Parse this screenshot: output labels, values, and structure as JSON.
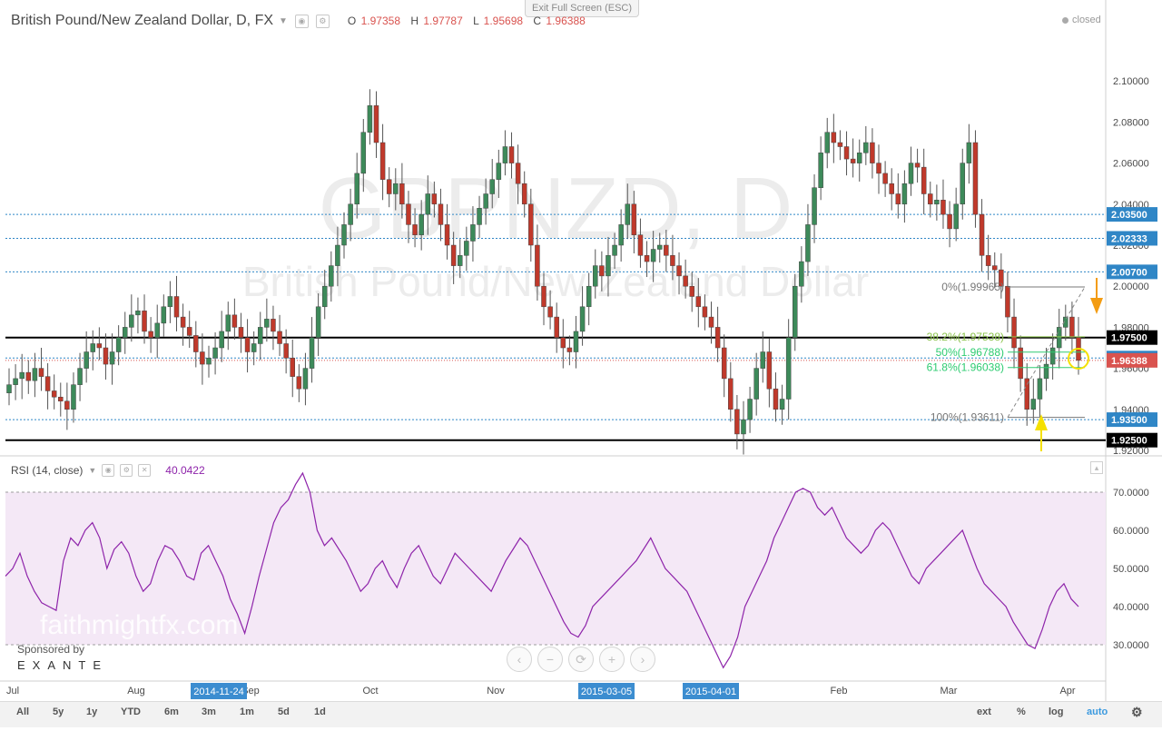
{
  "window": {
    "exit_fullscreen_label": "Exit Full Screen (ESC)"
  },
  "legend": {
    "title": "British Pound/New Zealand Dollar, D, FX",
    "open_label": "O",
    "open": "1.97358",
    "high_label": "H",
    "high": "1.97787",
    "low_label": "L",
    "low": "1.95698",
    "close_label": "C",
    "close": "1.96388",
    "status": "closed"
  },
  "watermark": {
    "symbol": "GBPNZD, D",
    "name": "British Pound/New Zealand Dollar"
  },
  "rsi_legend": {
    "name": "RSI (14, close)",
    "value": "40.0422"
  },
  "branding": {
    "site": "faithmightfx.com",
    "sponsor": "Sponsored by",
    "sponsor_name": "EXANTE"
  },
  "zoom_controls": [
    "‹",
    "−",
    "⟳",
    "+",
    "›"
  ],
  "timeframes": [
    "All",
    "5y",
    "1y",
    "YTD",
    "6m",
    "3m",
    "1m",
    "5d",
    "1d"
  ],
  "bottom_right": [
    "ext",
    "%",
    "log",
    "auto"
  ],
  "colors": {
    "up": "#3d8a5a",
    "down": "#c0392b",
    "rsi": "#8e24aa",
    "fib_green": "#2ecc71",
    "fib_lime": "#8bc34a",
    "orange_arrow": "#f39c12",
    "yellow_arrow": "#f5e000",
    "level_blue": "#2f86c6",
    "price_red": "#d9534f"
  },
  "chart_data": [
    {
      "type": "candlestick",
      "title": "British Pound/New Zealand Dollar, D, FX",
      "ylim": [
        1.91,
        2.11
      ],
      "y_ticks": [
        "2.10000",
        "2.08000",
        "2.06000",
        "2.04000",
        "2.02000",
        "2.00000",
        "1.98000",
        "1.96000",
        "1.94000",
        "1.92000"
      ],
      "x_labels": [
        "Jul",
        "Aug",
        "Sep",
        "Oct",
        "Nov",
        "Feb",
        "Mar",
        "Apr"
      ],
      "x_highlight_labels": [
        "2014-11-24",
        "2015-03-05",
        "2015-04-01"
      ],
      "close_series": [
        1.952,
        1.955,
        1.958,
        1.954,
        1.96,
        1.956,
        1.949,
        1.946,
        1.944,
        1.94,
        1.952,
        1.96,
        1.968,
        1.972,
        1.97,
        1.962,
        1.968,
        1.975,
        1.98,
        1.986,
        1.988,
        1.978,
        1.975,
        1.982,
        1.99,
        1.995,
        1.985,
        1.98,
        1.976,
        1.968,
        1.962,
        1.965,
        1.97,
        1.978,
        1.986,
        1.98,
        1.975,
        1.968,
        1.972,
        1.98,
        1.984,
        1.978,
        1.972,
        1.965,
        1.956,
        1.95,
        1.96,
        1.975,
        1.99,
        2.0,
        2.01,
        2.02,
        2.03,
        2.04,
        2.055,
        2.075,
        2.088,
        2.07,
        2.052,
        2.045,
        2.05,
        2.04,
        2.03,
        2.025,
        2.035,
        2.045,
        2.04,
        2.03,
        2.02,
        2.01,
        2.015,
        2.022,
        2.03,
        2.038,
        2.045,
        2.052,
        2.06,
        2.068,
        2.06,
        2.05,
        2.04,
        2.02,
        2.0,
        1.99,
        1.985,
        1.975,
        1.97,
        1.968,
        1.978,
        1.99,
        2.0,
        2.01,
        2.005,
        2.015,
        2.02,
        2.03,
        2.04,
        2.025,
        2.015,
        2.012,
        2.018,
        2.02,
        2.015,
        2.01,
        2.005,
        2.0,
        1.995,
        1.99,
        1.985,
        1.98,
        1.97,
        1.955,
        1.94,
        1.928,
        1.935,
        1.945,
        1.96,
        1.968,
        1.95,
        1.94,
        1.945,
        1.975,
        2.0,
        2.012,
        2.03,
        2.048,
        2.065,
        2.075,
        2.07,
        2.068,
        2.062,
        2.06,
        2.065,
        2.07,
        2.06,
        2.055,
        2.05,
        2.045,
        2.04,
        2.05,
        2.06,
        2.058,
        2.045,
        2.04,
        2.042,
        2.035,
        2.028,
        2.04,
        2.06,
        2.07,
        2.035,
        2.015,
        2.01,
        2.008,
        2.0,
        1.985,
        1.97,
        1.955,
        1.94,
        1.945,
        1.955,
        1.962,
        1.97,
        1.98,
        1.985,
        1.975,
        1.9639
      ],
      "candles_summary": "daily GBP/NZD candles, last candle O 1.97358 H 1.97787 L 1.95698 C 1.96388",
      "horizontal_levels": [
        {
          "value": 2.035,
          "label": "2.03500",
          "style": "dotted-blue"
        },
        {
          "value": 2.02333,
          "label": "2.02333",
          "style": "dotted-blue"
        },
        {
          "value": 2.007,
          "label": "2.00700",
          "style": "dotted-blue"
        },
        {
          "value": 1.975,
          "label": "1.97500",
          "style": "solid-black"
        },
        {
          "value": 1.965,
          "label": "1.96500",
          "style": "dotted-blue"
        },
        {
          "value": 1.96388,
          "label": "1.96388",
          "style": "current-price-red"
        },
        {
          "value": 1.935,
          "label": "1.93500",
          "style": "dotted-blue"
        },
        {
          "value": 1.925,
          "label": "1.92500",
          "style": "solid-black"
        }
      ],
      "fibonacci": [
        {
          "label": "0%(1.99965)",
          "value": 1.99965
        },
        {
          "label": "38.2%(1.97538)",
          "value": 1.97538
        },
        {
          "label": "50%(1.96788)",
          "value": 1.96788
        },
        {
          "label": "61.8%(1.96038)",
          "value": 1.96038
        },
        {
          "label": "100%(1.93611)",
          "value": 1.93611
        }
      ]
    },
    {
      "type": "line",
      "title": "RSI (14, close)",
      "ylim": [
        22,
        78
      ],
      "y_ticks": [
        "70.0000",
        "60.0000",
        "50.0000",
        "40.0000",
        "30.0000"
      ],
      "band": [
        30,
        70
      ],
      "last_value": 40.0422,
      "series": [
        {
          "values": [
            48,
            50,
            54,
            48,
            44,
            41,
            40,
            39,
            52,
            58,
            56,
            60,
            62,
            58,
            50,
            55,
            57,
            54,
            48,
            44,
            46,
            52,
            56,
            55,
            52,
            48,
            47,
            54,
            56,
            52,
            48,
            42,
            38,
            33,
            40,
            48,
            55,
            62,
            66,
            68,
            72,
            75,
            70,
            60,
            56,
            58,
            55,
            52,
            48,
            44,
            46,
            50,
            52,
            48,
            45,
            50,
            54,
            56,
            52,
            48,
            46,
            50,
            54,
            52,
            50,
            48,
            46,
            44,
            48,
            52,
            55,
            58,
            56,
            52,
            48,
            44,
            40,
            36,
            33,
            32,
            35,
            40,
            42,
            44,
            46,
            48,
            50,
            52,
            55,
            58,
            54,
            50,
            48,
            46,
            44,
            40,
            36,
            32,
            28,
            24,
            27,
            32,
            40,
            44,
            48,
            52,
            58,
            62,
            66,
            70,
            71,
            70,
            66,
            64,
            66,
            62,
            58,
            56,
            54,
            56,
            60,
            62,
            60,
            56,
            52,
            48,
            46,
            50,
            52,
            54,
            56,
            58,
            60,
            55,
            50,
            46,
            44,
            42,
            40,
            36,
            33,
            30,
            29,
            34,
            40,
            44,
            46,
            42,
            40
          ]
        }
      ]
    }
  ]
}
